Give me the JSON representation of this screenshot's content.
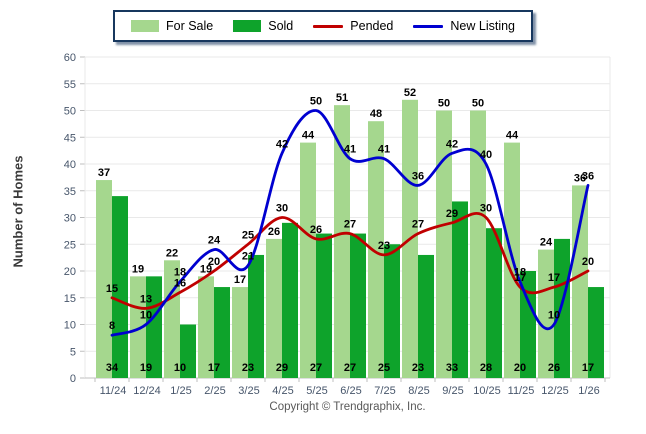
{
  "legend": {
    "items": [
      {
        "label": "For Sale",
        "swatch": "bar",
        "color": "#A5D78E"
      },
      {
        "label": "Sold",
        "swatch": "bar",
        "color": "#0EA32B"
      },
      {
        "label": "Pended",
        "swatch": "line",
        "color": "#C00000"
      },
      {
        "label": "New Listing",
        "swatch": "line",
        "color": "#0000D0"
      }
    ]
  },
  "chart_data": {
    "type": "combo",
    "title": "",
    "ylabel": "Number of Homes",
    "xlabel": "",
    "categories": [
      "11/24",
      "12/24",
      "1/25",
      "2/25",
      "3/25",
      "4/25",
      "5/25",
      "6/25",
      "7/25",
      "8/25",
      "9/25",
      "10/25",
      "11/25",
      "12/25",
      "1/26"
    ],
    "series": [
      {
        "name": "For Sale",
        "type": "bar",
        "color": "#A5D78E",
        "values": [
          37,
          19,
          22,
          19,
          17,
          26,
          44,
          51,
          48,
          52,
          50,
          50,
          44,
          24,
          36
        ]
      },
      {
        "name": "Sold",
        "type": "bar",
        "color": "#0EA32B",
        "values": [
          34,
          19,
          10,
          17,
          23,
          29,
          27,
          27,
          25,
          23,
          33,
          28,
          20,
          26,
          17
        ]
      },
      {
        "name": "Pended",
        "type": "line",
        "color": "#C00000",
        "values": [
          15,
          13,
          16,
          20,
          25,
          30,
          26,
          27,
          23,
          27,
          29,
          30,
          17,
          17,
          20
        ]
      },
      {
        "name": "New Listing",
        "type": "line",
        "color": "#0000D0",
        "values": [
          8,
          10,
          18,
          24,
          21,
          42,
          50,
          41,
          41,
          36,
          42,
          40,
          18,
          10,
          36
        ]
      }
    ],
    "ylim": [
      0,
      60
    ],
    "ytick_step": 5,
    "grid": true,
    "legend_position": "top",
    "palette": {
      "grid": "#E9E9E9",
      "axis": "#BFBFBF",
      "tick_label": "#47566B",
      "data_label": "#000000"
    }
  },
  "footer": {
    "copyright": "Copyright © Trendgraphix, Inc."
  }
}
